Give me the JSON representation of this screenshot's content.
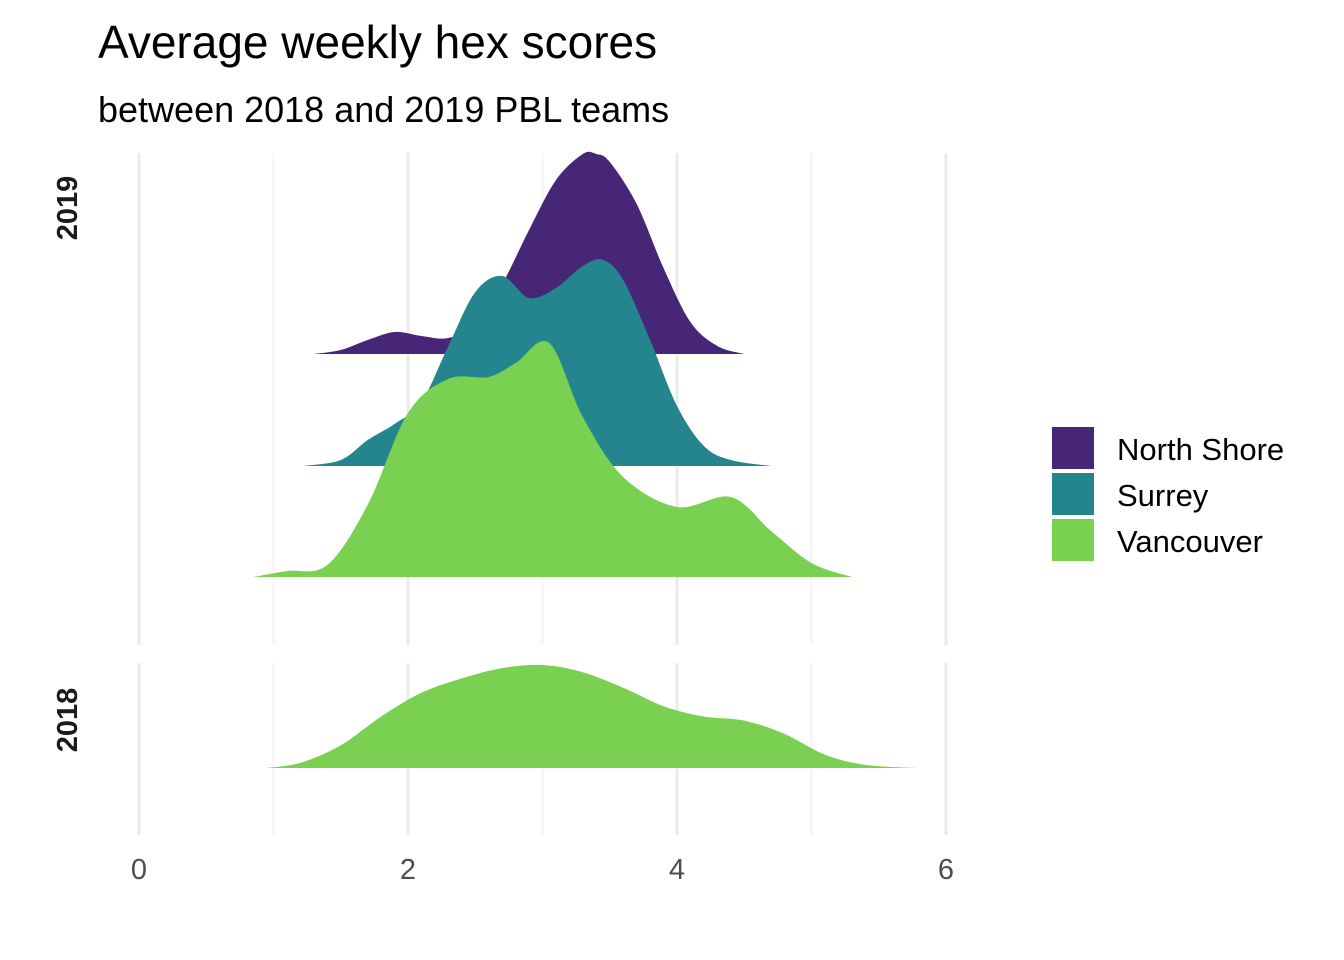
{
  "chart_data": {
    "type": "ridgeline",
    "title": "Average weekly hex scores",
    "subtitle": "between 2018 and 2019 PBL teams",
    "x_ticks": [
      0,
      2,
      4,
      6
    ],
    "xlim": [
      0,
      6
    ],
    "grid": true,
    "legend_position": "right",
    "legend": [
      {
        "name": "North Shore",
        "color": "#482677"
      },
      {
        "name": "Surrey",
        "color": "#25858E"
      },
      {
        "name": "Vancouver",
        "color": "#7AD151"
      }
    ],
    "facets": [
      {
        "label": "2019",
        "ridges": [
          {
            "series": "North Shore",
            "color": "#482677",
            "x": [
              1.3,
              1.5,
              1.7,
              1.9,
              2.1,
              2.3,
              2.5,
              2.7,
              2.9,
              3.1,
              3.3,
              3.4,
              3.5,
              3.7,
              3.9,
              4.1,
              4.3,
              4.5
            ],
            "density": [
              0.0,
              0.02,
              0.07,
              0.11,
              0.09,
              0.08,
              0.15,
              0.35,
              0.62,
              0.87,
              1.0,
              1.0,
              0.96,
              0.75,
              0.43,
              0.16,
              0.04,
              0.0
            ]
          },
          {
            "series": "Surrey",
            "color": "#25858E",
            "x": [
              1.22,
              1.5,
              1.7,
              1.9,
              2.1,
              2.3,
              2.5,
              2.7,
              2.9,
              3.1,
              3.3,
              3.45,
              3.6,
              3.8,
              4.0,
              4.2,
              4.4,
              4.7
            ],
            "density": [
              0.0,
              0.03,
              0.13,
              0.21,
              0.32,
              0.6,
              0.87,
              0.95,
              0.84,
              0.89,
              1.0,
              1.03,
              0.93,
              0.63,
              0.3,
              0.1,
              0.03,
              0.0
            ]
          },
          {
            "series": "Vancouver",
            "color": "#7AD151",
            "x": [
              0.85,
              1.1,
              1.4,
              1.7,
              2.0,
              2.3,
              2.6,
              2.8,
              3.05,
              3.3,
              3.6,
              4.0,
              4.4,
              4.7,
              5.0,
              5.3
            ],
            "density": [
              0.0,
              0.03,
              0.06,
              0.36,
              0.82,
              0.99,
              1.0,
              1.07,
              1.17,
              0.8,
              0.5,
              0.35,
              0.4,
              0.23,
              0.07,
              0.0
            ]
          }
        ]
      },
      {
        "label": "2018",
        "ridges": [
          {
            "series": "Vancouver",
            "color": "#7AD151",
            "x": [
              0.95,
              1.2,
              1.5,
              1.8,
              2.1,
              2.4,
              2.7,
              3.0,
              3.3,
              3.6,
              3.9,
              4.2,
              4.5,
              4.8,
              5.1,
              5.4,
              5.8
            ],
            "density": [
              0.0,
              0.05,
              0.22,
              0.5,
              0.73,
              0.87,
              0.97,
              1.0,
              0.93,
              0.78,
              0.6,
              0.5,
              0.46,
              0.33,
              0.13,
              0.03,
              0.0
            ]
          }
        ]
      }
    ]
  }
}
